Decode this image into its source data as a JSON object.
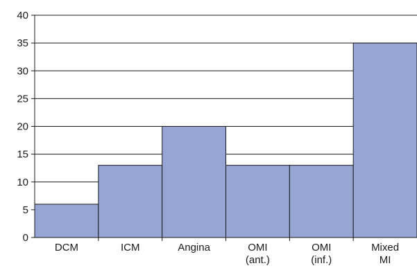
{
  "chart_data": {
    "type": "bar",
    "categories": [
      [
        "DCM"
      ],
      [
        "ICM"
      ],
      [
        "Angina"
      ],
      [
        "OMI",
        "(ant.)"
      ],
      [
        "OMI",
        "(inf.)"
      ],
      [
        "Mixed",
        "MI"
      ]
    ],
    "values": [
      6,
      13,
      20,
      13,
      13,
      35
    ],
    "title": "",
    "xlabel": "",
    "ylabel": "",
    "ylim": [
      0,
      40
    ],
    "yticks": [
      "0",
      "5",
      "10",
      "15",
      "20",
      "25",
      "30",
      "35",
      "40"
    ],
    "grid": true,
    "legend": "none",
    "colors": {
      "bar_fill": "#97a5d4",
      "bar_stroke": "#1a1a1a",
      "gridline": "#1a1a1a",
      "text": "#1a1a1a"
    }
  }
}
